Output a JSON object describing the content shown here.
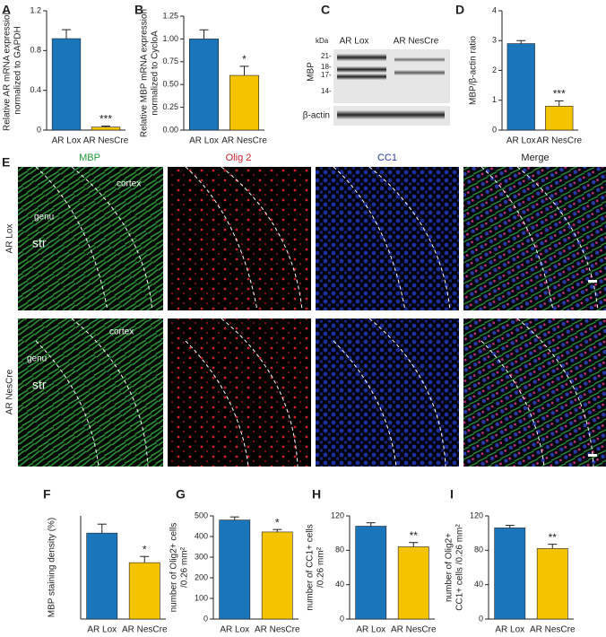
{
  "chart_data": [
    {
      "type": "bar",
      "panel": "A",
      "y_label": [
        "Relative AR mRNA expression",
        "normalized to GAPDH"
      ],
      "categories": [
        "AR Lox",
        "AR NesCre"
      ],
      "values": [
        0.92,
        0.03
      ],
      "errors": [
        0.09,
        0.01
      ],
      "significance": [
        null,
        "***"
      ],
      "colors": [
        "#1b75bb",
        "#f5c400"
      ],
      "ylim": [
        0,
        1.2
      ],
      "yticks": [
        0,
        0.4,
        0.8,
        1.2
      ]
    },
    {
      "type": "bar",
      "panel": "B",
      "y_label": [
        "Relative MBP mRNA expression",
        "normalized to CycloA"
      ],
      "categories": [
        "AR Lox",
        "AR NesCre"
      ],
      "values": [
        1.0,
        0.6
      ],
      "errors": [
        0.1,
        0.1
      ],
      "significance": [
        null,
        "*"
      ],
      "colors": [
        "#1b75bb",
        "#f5c400"
      ],
      "ylim": [
        0,
        1.25
      ],
      "yticks": [
        {
          "value": 0,
          "label": "0.00"
        },
        0.25,
        {
          "value": 0.5,
          "label": "0.50"
        },
        0.75,
        {
          "value": 1,
          "label": "1.00"
        },
        1.25
      ]
    },
    {
      "type": "bar",
      "panel": "D",
      "y_label": [
        "MBP/β-actin ratio"
      ],
      "categories": [
        "AR Lox",
        "AR NesCre"
      ],
      "values": [
        2.9,
        0.8
      ],
      "errors": [
        0.1,
        0.18
      ],
      "significance": [
        null,
        "***"
      ],
      "colors": [
        "#1b75bb",
        "#f5c400"
      ],
      "ylim": [
        0,
        4
      ],
      "yticks": [
        0,
        1,
        2,
        3,
        4
      ]
    },
    {
      "type": "bar",
      "panel": "F",
      "y_label": [
        "MBP staining  density (%)"
      ],
      "categories": [
        "AR Lox",
        "AR NesCre"
      ],
      "values": [
        12.5,
        8.2
      ],
      "errors": [
        1.3,
        0.9
      ],
      "significance": [
        null,
        "*"
      ],
      "colors": [
        "#1b75bb",
        "#f5c400"
      ],
      "ylim": [
        0,
        15
      ]
    },
    {
      "type": "bar",
      "panel": "G",
      "y_label": [
        "number of Olig2+ cells",
        "/0.26 mm²"
      ],
      "categories": [
        "AR Lox",
        "AR NesCre"
      ],
      "values": [
        480,
        422
      ],
      "errors": [
        15,
        12
      ],
      "significance": [
        null,
        "*"
      ],
      "colors": [
        "#1b75bb",
        "#f5c400"
      ],
      "ylim": [
        0,
        500
      ],
      "yticks": [
        0,
        100,
        200,
        300,
        400,
        500
      ]
    },
    {
      "type": "bar",
      "panel": "H",
      "y_label": [
        "number of CC1+ cells",
        "/0.26 mm²"
      ],
      "categories": [
        "AR Lox",
        "AR NesCre"
      ],
      "values": [
        108,
        84
      ],
      "errors": [
        4,
        5
      ],
      "significance": [
        null,
        "**"
      ],
      "colors": [
        "#1b75bb",
        "#f5c400"
      ],
      "ylim": [
        0,
        120
      ],
      "yticks": [
        0,
        40,
        80,
        120
      ]
    },
    {
      "type": "bar",
      "panel": "I",
      "y_label": [
        "number of Olig2+",
        "CC1+ cells /0.26 mm²"
      ],
      "categories": [
        "AR Lox",
        "AR NesCre"
      ],
      "values": [
        106,
        82
      ],
      "errors": [
        3,
        5
      ],
      "significance": [
        null,
        "**"
      ],
      "colors": [
        "#1b75bb",
        "#f5c400"
      ],
      "ylim": [
        0,
        120
      ],
      "yticks": [
        0,
        40,
        80,
        120
      ]
    }
  ],
  "blot": {
    "panel": "C",
    "groups": [
      "AR Lox",
      "AR NesCre"
    ],
    "kda_label": "kDa",
    "markers": [
      "21-",
      "18-",
      "17-",
      "14-"
    ],
    "protein": "MBP",
    "loading": "β-actin"
  },
  "images": {
    "panel": "E",
    "columns": [
      "MBP",
      "Olig 2",
      "CC1",
      "Merge"
    ],
    "rows": [
      "AR Lox",
      "AR NesCre"
    ],
    "regions": [
      "cortex",
      "genu",
      "str"
    ]
  }
}
